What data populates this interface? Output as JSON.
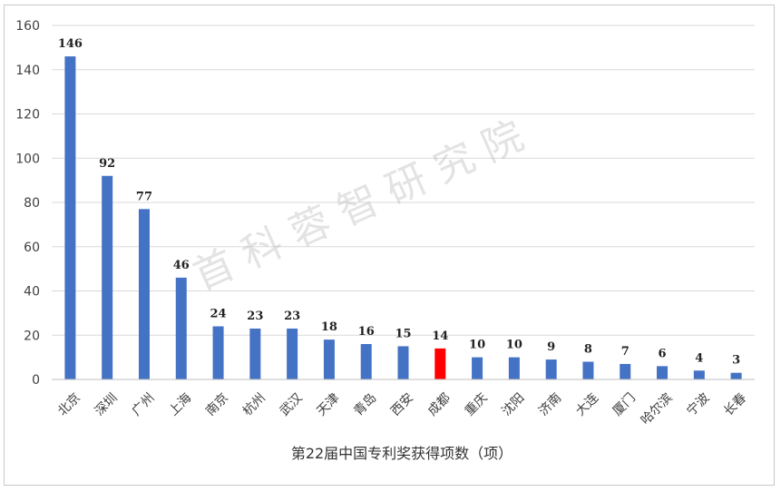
{
  "watermark": "首科蓉智研究院",
  "colors": {
    "bar": "#4472C4",
    "highlight": "#FF0000",
    "grid": "#d9d9d9",
    "axis": "#bfbfbf"
  },
  "chart_data": {
    "type": "bar",
    "categories": [
      "北京",
      "深圳",
      "广州",
      "上海",
      "南京",
      "杭州",
      "武汉",
      "天津",
      "青岛",
      "西安",
      "成都",
      "重庆",
      "沈阳",
      "济南",
      "大连",
      "厦门",
      "哈尔滨",
      "宁波",
      "长春"
    ],
    "values": [
      146,
      92,
      77,
      46,
      24,
      23,
      23,
      18,
      16,
      15,
      14,
      10,
      10,
      9,
      8,
      7,
      6,
      4,
      3
    ],
    "highlight_category": "成都",
    "title": "",
    "xlabel": "第22届中国专利奖获得项数（项）",
    "ylabel": "",
    "ylim": [
      0,
      160
    ],
    "yticks": [
      0,
      20,
      40,
      60,
      80,
      100,
      120,
      140,
      160
    ],
    "grid": true,
    "legend": "none",
    "data_labels": true
  }
}
